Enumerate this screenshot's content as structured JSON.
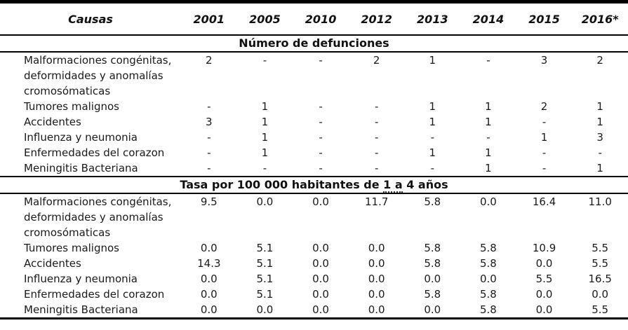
{
  "table": {
    "columns": [
      "Causas",
      "2001",
      "2005",
      "2010",
      "2012",
      "2013",
      "2014",
      "2015",
      "2016*"
    ],
    "sections": [
      {
        "title": "Número de defunciones",
        "rows": [
          {
            "cause": "Malformaciones congénitas, deformidades y anomalías cromosómaticas",
            "values": [
              "2",
              "-",
              "-",
              "2",
              "1",
              "-",
              "3",
              "2"
            ]
          },
          {
            "cause": "Tumores malignos",
            "values": [
              "-",
              "1",
              "-",
              "-",
              "1",
              "1",
              "2",
              "1"
            ]
          },
          {
            "cause": "Accidentes",
            "values": [
              "3",
              "1",
              "-",
              "-",
              "1",
              "1",
              "-",
              "1"
            ]
          },
          {
            "cause": "Influenza y neumonia",
            "values": [
              "-",
              "1",
              "-",
              "-",
              "-",
              "-",
              "1",
              "3"
            ]
          },
          {
            "cause": "Enfermedades del corazon",
            "values": [
              "-",
              "1",
              "-",
              "-",
              "1",
              "1",
              "-",
              "-"
            ]
          },
          {
            "cause": "Meningitis Bacteriana",
            "values": [
              "-",
              "-",
              "-",
              "-",
              "-",
              "1",
              "-",
              "1"
            ]
          }
        ]
      },
      {
        "title": "Tasa por 100 000 habitantes de 1 a 4 años",
        "title_parts": {
          "prefix": "Tasa por 100 000 habitantes de ",
          "underlined": "1 a",
          "suffix": " 4 años"
        },
        "rows": [
          {
            "cause": "Malformaciones congénitas, deformidades y anomalías cromosómaticas",
            "values": [
              "9.5",
              "0.0",
              "0.0",
              "11.7",
              "5.8",
              "0.0",
              "16.4",
              "11.0"
            ]
          },
          {
            "cause": "Tumores malignos",
            "values": [
              "0.0",
              "5.1",
              "0.0",
              "0.0",
              "5.8",
              "5.8",
              "10.9",
              "5.5"
            ]
          },
          {
            "cause": "Accidentes",
            "values": [
              "14.3",
              "5.1",
              "0.0",
              "0.0",
              "5.8",
              "5.8",
              "0.0",
              "5.5"
            ]
          },
          {
            "cause": "Influenza y neumonia",
            "values": [
              "0.0",
              "5.1",
              "0.0",
              "0.0",
              "0.0",
              "0.0",
              "5.5",
              "16.5"
            ]
          },
          {
            "cause": "Enfermedades del corazon",
            "values": [
              "0.0",
              "5.1",
              "0.0",
              "0.0",
              "5.8",
              "5.8",
              "0.0",
              "0.0"
            ]
          },
          {
            "cause": "Meningitis Bacteriana",
            "values": [
              "0.0",
              "0.0",
              "0.0",
              "0.0",
              "0.0",
              "5.8",
              "0.0",
              "5.5"
            ]
          }
        ]
      }
    ]
  },
  "colors": {
    "border": "#000000",
    "text": "#1a1a1a",
    "background": "#ffffff",
    "spellcheck_underline": "#3a3a3a"
  }
}
